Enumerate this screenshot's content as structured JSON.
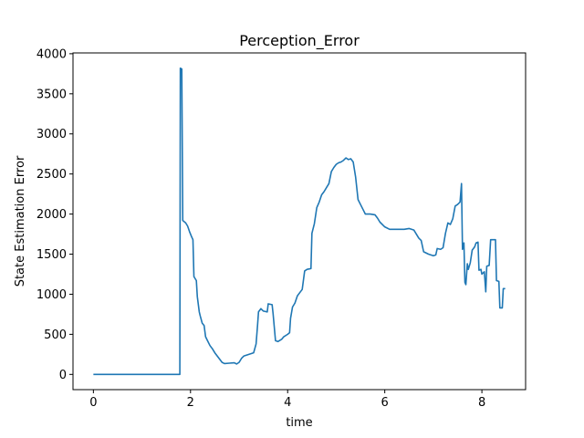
{
  "chart_data": {
    "type": "line",
    "title": "Perception_Error",
    "xlabel": "time",
    "ylabel": "State Estimation Error",
    "xlim": [
      -0.42,
      8.9
    ],
    "ylim": [
      -190,
      4010
    ],
    "xticks": [
      0,
      2,
      4,
      6,
      8
    ],
    "yticks": [
      0,
      500,
      1000,
      1500,
      2000,
      2500,
      3000,
      3500,
      4000
    ],
    "xtick_labels": [
      "0",
      "2",
      "4",
      "6",
      "8"
    ],
    "ytick_labels": [
      "0",
      "500",
      "1000",
      "1500",
      "2000",
      "2500",
      "3000",
      "3500",
      "4000"
    ],
    "grid": false,
    "legend": "none",
    "series": [
      {
        "color": "#1f77b4",
        "points": [
          [
            0.0,
            0
          ],
          [
            1.0,
            0
          ],
          [
            1.78,
            0
          ],
          [
            1.79,
            3820
          ],
          [
            1.82,
            3810
          ],
          [
            1.84,
            1920
          ],
          [
            1.9,
            1890
          ],
          [
            1.94,
            1850
          ],
          [
            1.98,
            1780
          ],
          [
            2.02,
            1720
          ],
          [
            2.05,
            1680
          ],
          [
            2.07,
            1220
          ],
          [
            2.12,
            1170
          ],
          [
            2.14,
            970
          ],
          [
            2.18,
            780
          ],
          [
            2.2,
            730
          ],
          [
            2.24,
            640
          ],
          [
            2.28,
            610
          ],
          [
            2.31,
            470
          ],
          [
            2.35,
            420
          ],
          [
            2.4,
            360
          ],
          [
            2.45,
            320
          ],
          [
            2.5,
            270
          ],
          [
            2.55,
            230
          ],
          [
            2.6,
            190
          ],
          [
            2.65,
            150
          ],
          [
            2.7,
            135
          ],
          [
            2.8,
            140
          ],
          [
            2.9,
            145
          ],
          [
            2.95,
            130
          ],
          [
            3.0,
            150
          ],
          [
            3.05,
            200
          ],
          [
            3.1,
            230
          ],
          [
            3.2,
            250
          ],
          [
            3.3,
            270
          ],
          [
            3.35,
            380
          ],
          [
            3.38,
            610
          ],
          [
            3.4,
            780
          ],
          [
            3.45,
            820
          ],
          [
            3.5,
            790
          ],
          [
            3.58,
            780
          ],
          [
            3.6,
            880
          ],
          [
            3.68,
            870
          ],
          [
            3.7,
            760
          ],
          [
            3.75,
            420
          ],
          [
            3.8,
            410
          ],
          [
            3.88,
            440
          ],
          [
            3.92,
            470
          ],
          [
            4.0,
            500
          ],
          [
            4.04,
            520
          ],
          [
            4.06,
            700
          ],
          [
            4.1,
            840
          ],
          [
            4.15,
            890
          ],
          [
            4.2,
            980
          ],
          [
            4.25,
            1020
          ],
          [
            4.3,
            1060
          ],
          [
            4.35,
            1290
          ],
          [
            4.4,
            1310
          ],
          [
            4.48,
            1320
          ],
          [
            4.5,
            1760
          ],
          [
            4.55,
            1880
          ],
          [
            4.6,
            2080
          ],
          [
            4.65,
            2150
          ],
          [
            4.7,
            2240
          ],
          [
            4.75,
            2280
          ],
          [
            4.8,
            2330
          ],
          [
            4.85,
            2380
          ],
          [
            4.9,
            2530
          ],
          [
            4.95,
            2580
          ],
          [
            5.0,
            2620
          ],
          [
            5.05,
            2640
          ],
          [
            5.1,
            2650
          ],
          [
            5.15,
            2670
          ],
          [
            5.2,
            2700
          ],
          [
            5.25,
            2680
          ],
          [
            5.3,
            2690
          ],
          [
            5.35,
            2650
          ],
          [
            5.4,
            2460
          ],
          [
            5.45,
            2180
          ],
          [
            5.5,
            2120
          ],
          [
            5.55,
            2060
          ],
          [
            5.6,
            2000
          ],
          [
            5.7,
            2000
          ],
          [
            5.8,
            1990
          ],
          [
            5.85,
            1950
          ],
          [
            5.9,
            1900
          ],
          [
            6.0,
            1840
          ],
          [
            6.1,
            1810
          ],
          [
            6.2,
            1810
          ],
          [
            6.3,
            1810
          ],
          [
            6.4,
            1810
          ],
          [
            6.5,
            1820
          ],
          [
            6.6,
            1800
          ],
          [
            6.65,
            1750
          ],
          [
            6.7,
            1700
          ],
          [
            6.75,
            1670
          ],
          [
            6.8,
            1530
          ],
          [
            6.9,
            1500
          ],
          [
            7.0,
            1480
          ],
          [
            7.05,
            1490
          ],
          [
            7.08,
            1570
          ],
          [
            7.15,
            1560
          ],
          [
            7.2,
            1580
          ],
          [
            7.25,
            1760
          ],
          [
            7.3,
            1890
          ],
          [
            7.35,
            1870
          ],
          [
            7.4,
            1940
          ],
          [
            7.45,
            2100
          ],
          [
            7.5,
            2120
          ],
          [
            7.55,
            2150
          ],
          [
            7.58,
            2380
          ],
          [
            7.6,
            1560
          ],
          [
            7.63,
            1640
          ],
          [
            7.65,
            1150
          ],
          [
            7.67,
            1120
          ],
          [
            7.7,
            1380
          ],
          [
            7.72,
            1310
          ],
          [
            7.76,
            1390
          ],
          [
            7.8,
            1550
          ],
          [
            7.85,
            1590
          ],
          [
            7.88,
            1640
          ],
          [
            7.92,
            1650
          ],
          [
            7.94,
            1300
          ],
          [
            7.98,
            1310
          ],
          [
            8.0,
            1250
          ],
          [
            8.05,
            1280
          ],
          [
            8.08,
            1030
          ],
          [
            8.1,
            1350
          ],
          [
            8.15,
            1360
          ],
          [
            8.18,
            1680
          ],
          [
            8.28,
            1680
          ],
          [
            8.3,
            1170
          ],
          [
            8.35,
            1160
          ],
          [
            8.37,
            830
          ],
          [
            8.42,
            830
          ],
          [
            8.44,
            1070
          ],
          [
            8.48,
            1070
          ]
        ]
      }
    ]
  }
}
